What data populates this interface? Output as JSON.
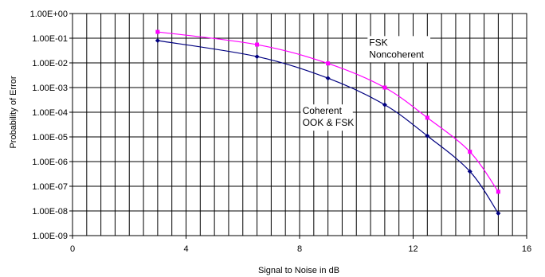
{
  "chart_data": {
    "type": "line",
    "title": "",
    "xlabel": "Signal to Noise in dB",
    "ylabel": "Probability of Error",
    "x_scale": "linear",
    "y_scale": "log",
    "xlim": [
      0,
      16
    ],
    "ylim": [
      1e-09,
      1
    ],
    "x_ticks": [
      "0",
      "4",
      "8",
      "12",
      "16"
    ],
    "x_tick_values": [
      0,
      4,
      8,
      12,
      16
    ],
    "y_ticks": [
      "1.00E-09",
      "1.00E-08",
      "1.00E-07",
      "1.00E-06",
      "1.00E-05",
      "1.00E-04",
      "1.00E-03",
      "1.00E-02",
      "1.00E-01",
      "1.00E+00"
    ],
    "y_tick_values": [
      1e-09,
      1e-08,
      1e-07,
      1e-06,
      1e-05,
      0.0001,
      0.001,
      0.01,
      0.1,
      1
    ],
    "grid": true,
    "x_minor_step": 0.5,
    "legend": "none",
    "series": [
      {
        "label_lines": [
          "Coherent",
          "OOK & FSK"
        ],
        "color": "#000080",
        "marker": "diamond",
        "x": [
          3,
          6.5,
          9,
          11,
          12.5,
          14,
          15
        ],
        "y": [
          0.08,
          0.018,
          0.0024,
          0.0002,
          1.1e-05,
          4e-07,
          8e-09
        ]
      },
      {
        "label_lines": [
          "FSK",
          "Noncoherent"
        ],
        "color": "#ff00ff",
        "marker": "square",
        "x": [
          3,
          6.5,
          9,
          11,
          12.5,
          14,
          15
        ],
        "y": [
          0.18,
          0.055,
          0.0095,
          0.001,
          6e-05,
          2.5e-06,
          6e-08
        ]
      }
    ],
    "annotations": [
      {
        "series": 1,
        "lines": [
          "FSK",
          "Noncoherent"
        ],
        "at_x": 10.45,
        "at_y": 0.05
      },
      {
        "series": 0,
        "lines": [
          "Coherent",
          "OOK & FSK"
        ],
        "at_x": 8.1,
        "at_y": 8.5e-05
      }
    ]
  }
}
